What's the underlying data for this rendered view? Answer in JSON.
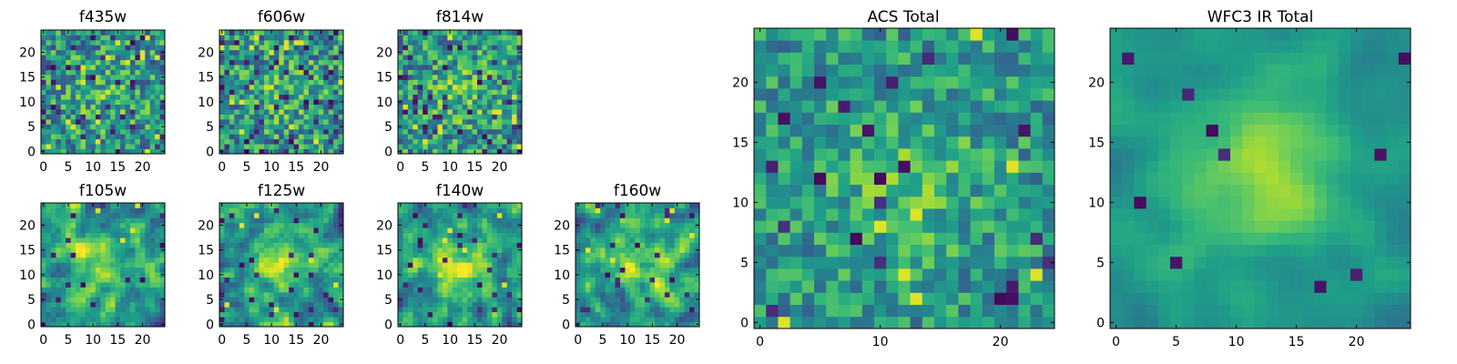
{
  "chart_data": [
    {
      "type": "heatmap",
      "title": "f435w",
      "grid_size": [
        25,
        25
      ],
      "xlim": [
        0,
        25
      ],
      "ylim": [
        0,
        25
      ],
      "x_ticks": [
        0,
        5,
        10,
        15,
        20
      ],
      "y_ticks": [
        0,
        5,
        10,
        15,
        20
      ],
      "colormap": "viridis",
      "seed": 11,
      "signal": 0.35,
      "noise": 0.55,
      "smooth": 0,
      "outlier_rate": 0.07
    },
    {
      "type": "heatmap",
      "title": "f606w",
      "grid_size": [
        25,
        25
      ],
      "xlim": [
        0,
        25
      ],
      "ylim": [
        0,
        25
      ],
      "x_ticks": [
        0,
        5,
        10,
        15,
        20
      ],
      "y_ticks": [
        0,
        5,
        10,
        15,
        20
      ],
      "colormap": "viridis",
      "seed": 23,
      "signal": 0.35,
      "noise": 0.55,
      "smooth": 0,
      "outlier_rate": 0.07
    },
    {
      "type": "heatmap",
      "title": "f814w",
      "grid_size": [
        25,
        25
      ],
      "xlim": [
        0,
        25
      ],
      "ylim": [
        0,
        25
      ],
      "x_ticks": [
        0,
        5,
        10,
        15,
        20
      ],
      "y_ticks": [
        0,
        5,
        10,
        15,
        20
      ],
      "colormap": "viridis",
      "seed": 37,
      "signal": 0.4,
      "noise": 0.55,
      "smooth": 0,
      "outlier_rate": 0.07
    },
    {
      "type": "heatmap",
      "title": "f105w",
      "grid_size": [
        25,
        25
      ],
      "xlim": [
        0,
        25
      ],
      "ylim": [
        0,
        25
      ],
      "x_ticks": [
        0,
        5,
        10,
        15,
        20
      ],
      "y_ticks": [
        0,
        5,
        10,
        15,
        20
      ],
      "colormap": "viridis",
      "seed": 41,
      "signal": 0.7,
      "noise": 0.5,
      "smooth": 1,
      "outlier_rate": 0.03
    },
    {
      "type": "heatmap",
      "title": "f125w",
      "grid_size": [
        25,
        25
      ],
      "xlim": [
        0,
        25
      ],
      "ylim": [
        0,
        25
      ],
      "x_ticks": [
        0,
        5,
        10,
        15,
        20
      ],
      "y_ticks": [
        0,
        5,
        10,
        15,
        20
      ],
      "colormap": "viridis",
      "seed": 53,
      "signal": 0.7,
      "noise": 0.5,
      "smooth": 1,
      "outlier_rate": 0.03
    },
    {
      "type": "heatmap",
      "title": "f140w",
      "grid_size": [
        25,
        25
      ],
      "xlim": [
        0,
        25
      ],
      "ylim": [
        0,
        25
      ],
      "x_ticks": [
        0,
        5,
        10,
        15,
        20
      ],
      "y_ticks": [
        0,
        5,
        10,
        15,
        20
      ],
      "colormap": "viridis",
      "seed": 67,
      "signal": 0.7,
      "noise": 0.5,
      "smooth": 1,
      "outlier_rate": 0.03
    },
    {
      "type": "heatmap",
      "title": "f160w",
      "grid_size": [
        25,
        25
      ],
      "xlim": [
        0,
        25
      ],
      "ylim": [
        0,
        25
      ],
      "x_ticks": [
        0,
        5,
        10,
        15,
        20
      ],
      "y_ticks": [
        0,
        5,
        10,
        15,
        20
      ],
      "colormap": "viridis",
      "seed": 79,
      "signal": 0.75,
      "noise": 0.5,
      "smooth": 1,
      "outlier_rate": 0.03
    },
    {
      "type": "heatmap",
      "title": "ACS Total",
      "grid_size": [
        25,
        25
      ],
      "xlim": [
        0,
        25
      ],
      "ylim": [
        0,
        25
      ],
      "x_ticks": [
        0,
        10,
        20
      ],
      "y_ticks": [
        0,
        5,
        10,
        15,
        20
      ],
      "colormap": "viridis",
      "seed": 97,
      "signal": 0.45,
      "noise": 0.4,
      "smooth": 0,
      "outlier_rate": 0.04
    },
    {
      "type": "heatmap",
      "title": "WFC3 IR Total",
      "grid_size": [
        25,
        25
      ],
      "xlim": [
        0,
        25
      ],
      "ylim": [
        0,
        25
      ],
      "x_ticks": [
        0,
        5,
        10,
        15,
        20
      ],
      "y_ticks": [
        0,
        5,
        10,
        15,
        20
      ],
      "colormap": "viridis",
      "seed": 131,
      "signal": 0.85,
      "noise": 0.25,
      "smooth": 2,
      "outlier_rate": 0.015
    }
  ]
}
